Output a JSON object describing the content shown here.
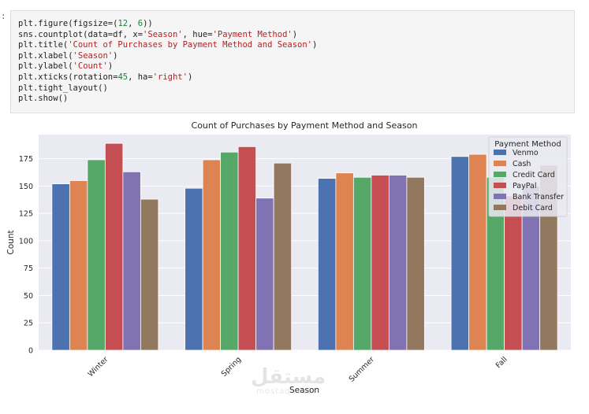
{
  "notebook": {
    "prompt": ":",
    "code_lines": [
      [
        {
          "t": "plt.figure(figsize=(",
          "c": ""
        },
        {
          "t": "12",
          "c": "num"
        },
        {
          "t": ", ",
          "c": ""
        },
        {
          "t": "6",
          "c": "num"
        },
        {
          "t": "))",
          "c": ""
        }
      ],
      [
        {
          "t": "sns.countplot(data=df, x=",
          "c": ""
        },
        {
          "t": "'Season'",
          "c": "str"
        },
        {
          "t": ", hue=",
          "c": ""
        },
        {
          "t": "'Payment Method'",
          "c": "str"
        },
        {
          "t": ")",
          "c": ""
        }
      ],
      [
        {
          "t": "plt.title(",
          "c": ""
        },
        {
          "t": "'Count of Purchases by Payment Method and Season'",
          "c": "str"
        },
        {
          "t": ")",
          "c": ""
        }
      ],
      [
        {
          "t": "plt.xlabel(",
          "c": ""
        },
        {
          "t": "'Season'",
          "c": "str"
        },
        {
          "t": ")",
          "c": ""
        }
      ],
      [
        {
          "t": "plt.ylabel(",
          "c": ""
        },
        {
          "t": "'Count'",
          "c": "str"
        },
        {
          "t": ")",
          "c": ""
        }
      ],
      [
        {
          "t": "plt.xticks(rotation=",
          "c": ""
        },
        {
          "t": "45",
          "c": "num"
        },
        {
          "t": ", ha=",
          "c": ""
        },
        {
          "t": "'right'",
          "c": "str"
        },
        {
          "t": ")",
          "c": ""
        }
      ],
      [
        {
          "t": "plt.tight_layout()",
          "c": ""
        }
      ],
      [
        {
          "t": "plt.show()",
          "c": ""
        }
      ]
    ]
  },
  "chart_data": {
    "type": "bar",
    "title": "Count of Purchases by Payment Method and Season",
    "xlabel": "Season",
    "ylabel": "Count",
    "categories": [
      "Winter",
      "Spring",
      "Summer",
      "Fall"
    ],
    "ylim": [
      0,
      197
    ],
    "yticks": [
      0,
      25,
      50,
      75,
      100,
      125,
      150,
      175
    ],
    "grid": true,
    "xtick_rotation": 45,
    "legend": {
      "title": "Payment Method",
      "position": "top-right"
    },
    "series": [
      {
        "name": "Venmo",
        "color": "#4c72b0",
        "values": [
          152,
          148,
          157,
          177
        ]
      },
      {
        "name": "Cash",
        "color": "#dd8452",
        "values": [
          155,
          174,
          162,
          179
        ]
      },
      {
        "name": "Credit Card",
        "color": "#55a868",
        "values": [
          174,
          181,
          158,
          158
        ]
      },
      {
        "name": "PayPal",
        "color": "#c44e52",
        "values": [
          189,
          186,
          160,
          141
        ]
      },
      {
        "name": "Bank Transfer",
        "color": "#8172b3",
        "values": [
          163,
          139,
          160,
          150
        ]
      },
      {
        "name": "Debit Card",
        "color": "#937860",
        "values": [
          138,
          171,
          158,
          169
        ]
      }
    ]
  },
  "watermark": {
    "logo": "مستقل",
    "site": "mostaql.com"
  }
}
